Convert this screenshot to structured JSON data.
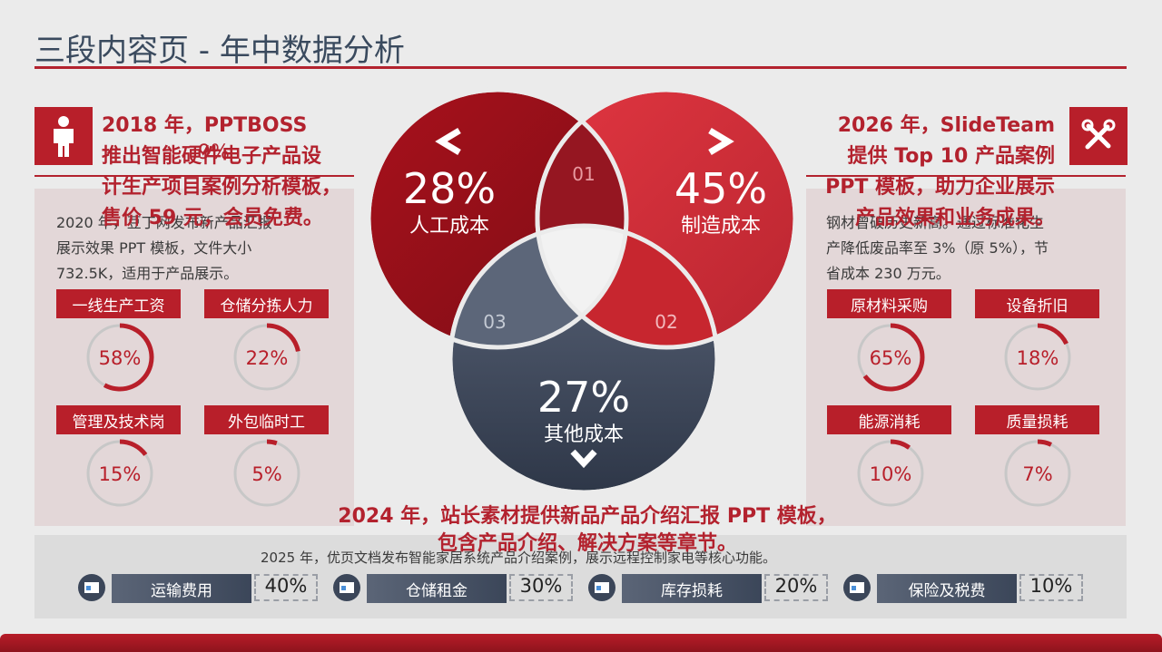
{
  "page": {
    "title": "三段内容页 - 年中数据分析"
  },
  "left": {
    "headline": [
      "2018 年，PPTBOSS",
      "推出智能硬件电子产品设",
      "计生产项目案例分析模板，",
      "售价 59 元，会员免费。"
    ],
    "overlay": "9%",
    "body": [
      "2020 年，豆丁网发布新产品汇报",
      "展示效果 PPT 模板，文件大小",
      "732.5K，适用于产品展示。"
    ],
    "items": [
      {
        "label": "一线生产工资",
        "value": "58%",
        "pct": 58
      },
      {
        "label": "仓储分拣人力",
        "value": "22%",
        "pct": 22
      },
      {
        "label": "管理及技术岗",
        "value": "15%",
        "pct": 15
      },
      {
        "label": "外包临时工",
        "value": "5%",
        "pct": 5
      }
    ]
  },
  "right": {
    "headline": [
      "2026 年，SlideTeam",
      "提供 Top 10 产品案例",
      "PPT 模板，助力企业展示",
      "产品效果和业务成果。"
    ],
    "body": [
      "钢材曾破历史新高。通过标准化生",
      "产降低废品率至 3%（原 5%），节",
      "省成本 230 万元。"
    ],
    "items": [
      {
        "label": "原材料采购",
        "value": "65%",
        "pct": 65
      },
      {
        "label": "设备折旧",
        "value": "18%",
        "pct": 18
      },
      {
        "label": "能源消耗",
        "value": "10%",
        "pct": 10
      },
      {
        "label": "质量损耗",
        "value": "7%",
        "pct": 7
      }
    ]
  },
  "venn": {
    "c1": {
      "value": "28%",
      "label": "人工成本"
    },
    "c2": {
      "value": "45%",
      "label": "制造成本"
    },
    "c3": {
      "value": "27%",
      "label": "其他成本"
    },
    "n1": "01",
    "n2": "02",
    "n3": "03"
  },
  "center": {
    "headline": [
      "2024 年，站长素材提供新品产品介绍汇报 PPT 模板，",
      "包含产品介绍、解决方案等章节。"
    ],
    "caption": "2025 年，优页文档发布智能家居系统产品介绍案例，展示远程控制家电等核心功能。"
  },
  "bottom": {
    "items": [
      {
        "label": "运输费用",
        "value": "40%"
      },
      {
        "label": "仓储租金",
        "value": "30%"
      },
      {
        "label": "库存损耗",
        "value": "20%"
      },
      {
        "label": "保险及税费",
        "value": "10%"
      }
    ]
  },
  "colors": {
    "accent": "#b81f2a",
    "dark": "#3b4659",
    "panel": "#e3d7d8"
  }
}
